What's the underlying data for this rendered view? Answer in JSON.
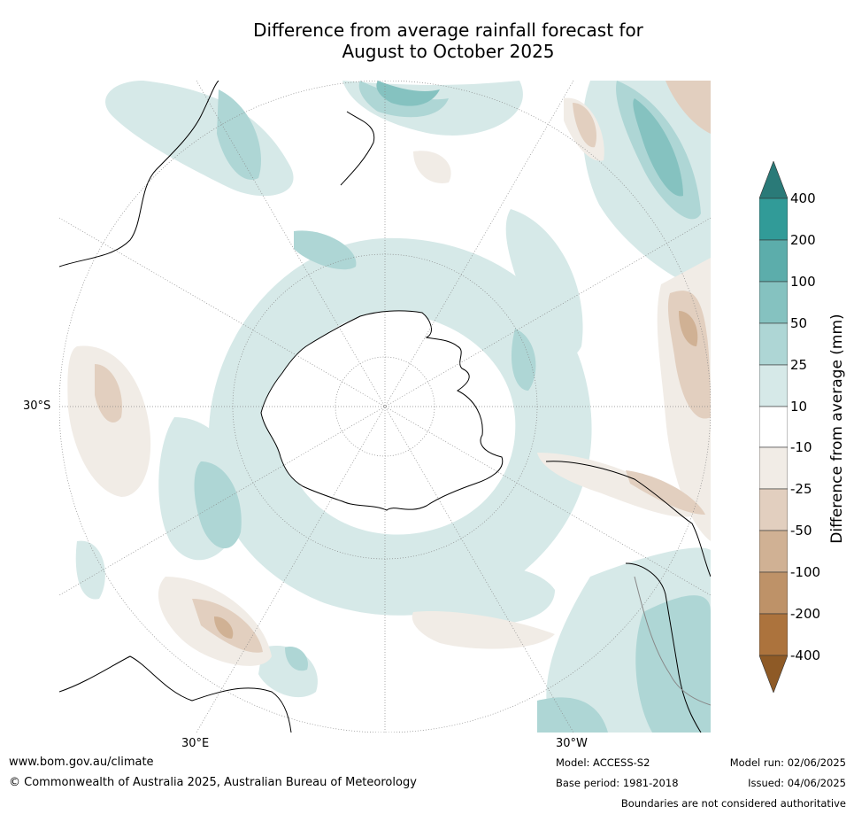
{
  "title": {
    "line1": "Difference from average rainfall forecast for",
    "line2": "August to October 2025"
  },
  "map": {
    "projection": "south-polar-stereographic",
    "labels": {
      "lat30": "30°S",
      "lon30e": "30°E",
      "lon30w": "30°W"
    }
  },
  "colorbar": {
    "label": "Difference from average (mm)",
    "ticks": [
      "400",
      "200",
      "100",
      "50",
      "25",
      "10",
      "-10",
      "-25",
      "-50",
      "-100",
      "-200",
      "-400"
    ],
    "colors": {
      "extend_top": "#2a7a78",
      "gt200": "#319b98",
      "100_200": "#5cadab",
      "50_100": "#85c2c0",
      "25_50": "#aed6d5",
      "10_25": "#d6e9e8",
      "neutral": "#ffffff",
      "m25_m10": "#f1ece6",
      "m50_m25": "#e2cfbf",
      "m100_m50": "#d0b194",
      "m200_m100": "#be9268",
      "lt_m200": "#ac733d",
      "extend_bottom": "#8e5a26"
    }
  },
  "footer": {
    "url": "www.bom.gov.au/climate",
    "copyright": "© Commonwealth of Australia 2025, Australian Bureau of Meteorology",
    "model": "Model: ACCESS-S2",
    "base_period": "Base period: 1981-2018",
    "model_run": "Model run: 02/06/2025",
    "issued": "Issued: 04/06/2025",
    "disclaimer": "Boundaries are not considered authoritative"
  }
}
